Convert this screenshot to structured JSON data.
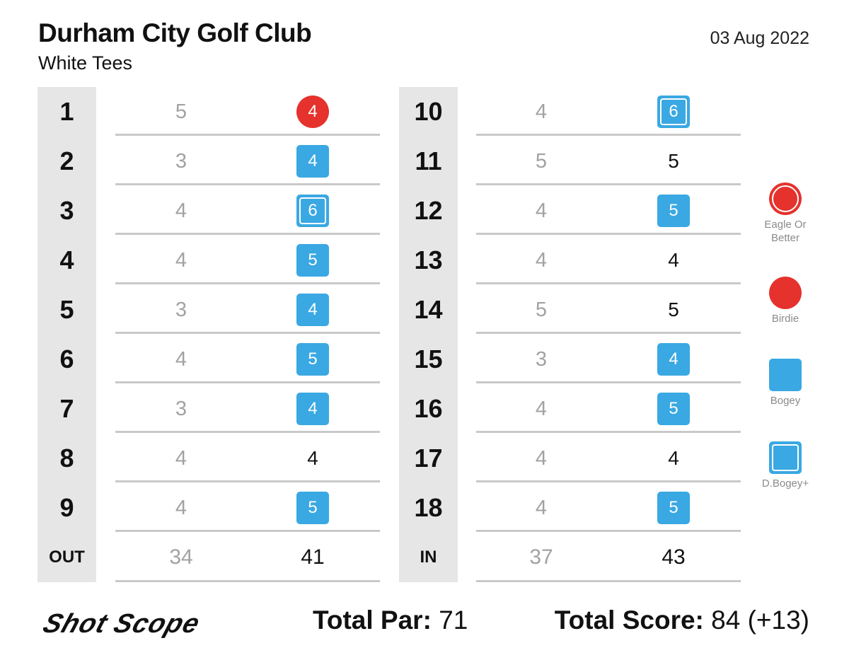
{
  "header": {
    "club_name": "Durham City Golf Club",
    "tees": "White Tees",
    "date": "03 Aug 2022"
  },
  "front_nine": [
    {
      "hole": "1",
      "par": "5",
      "score": "4",
      "result": "birdie"
    },
    {
      "hole": "2",
      "par": "3",
      "score": "4",
      "result": "bogey"
    },
    {
      "hole": "3",
      "par": "4",
      "score": "6",
      "result": "double-bogey-plus"
    },
    {
      "hole": "4",
      "par": "4",
      "score": "5",
      "result": "bogey"
    },
    {
      "hole": "5",
      "par": "3",
      "score": "4",
      "result": "bogey"
    },
    {
      "hole": "6",
      "par": "4",
      "score": "5",
      "result": "bogey"
    },
    {
      "hole": "7",
      "par": "3",
      "score": "4",
      "result": "bogey"
    },
    {
      "hole": "8",
      "par": "4",
      "score": "4",
      "result": "par"
    },
    {
      "hole": "9",
      "par": "4",
      "score": "5",
      "result": "bogey"
    }
  ],
  "back_nine": [
    {
      "hole": "10",
      "par": "4",
      "score": "6",
      "result": "double-bogey-plus"
    },
    {
      "hole": "11",
      "par": "5",
      "score": "5",
      "result": "par"
    },
    {
      "hole": "12",
      "par": "4",
      "score": "5",
      "result": "bogey"
    },
    {
      "hole": "13",
      "par": "4",
      "score": "4",
      "result": "par"
    },
    {
      "hole": "14",
      "par": "5",
      "score": "5",
      "result": "par"
    },
    {
      "hole": "15",
      "par": "3",
      "score": "4",
      "result": "bogey"
    },
    {
      "hole": "16",
      "par": "4",
      "score": "5",
      "result": "bogey"
    },
    {
      "hole": "17",
      "par": "4",
      "score": "4",
      "result": "par"
    },
    {
      "hole": "18",
      "par": "4",
      "score": "5",
      "result": "bogey"
    }
  ],
  "totals": {
    "out_label": "OUT",
    "out_par": "34",
    "out_score": "41",
    "in_label": "IN",
    "in_par": "37",
    "in_score": "43"
  },
  "legend": {
    "eagle": "Eagle Or Better",
    "birdie": "Birdie",
    "bogey": "Bogey",
    "double_bogey": "D.Bogey+"
  },
  "footer": {
    "logo_text": "Shot Scope",
    "total_par_label": "Total Par:",
    "total_par_value": "71",
    "total_score_label": "Total Score:",
    "total_score_value": "84 (+13)"
  },
  "colors": {
    "birdie": "#e5322d",
    "bogey": "#3aa8e2",
    "par_text": "#a2a2a2",
    "hole_column_bg": "#e6e6e6",
    "divider": "#c9c9c9"
  }
}
